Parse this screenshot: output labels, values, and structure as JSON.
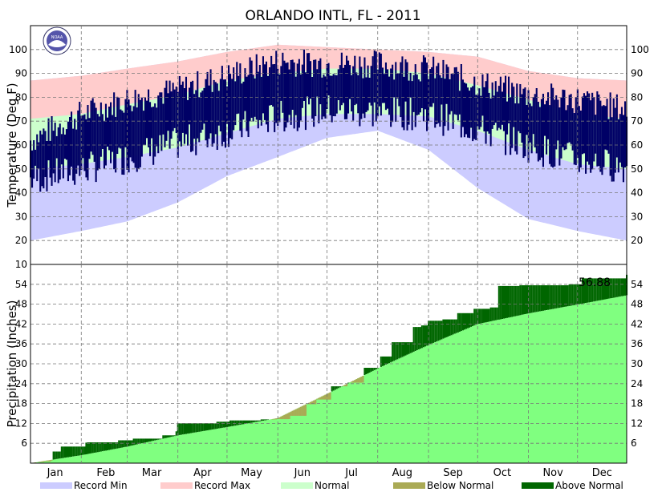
{
  "title": "ORLANDO INTL, FL - 2011",
  "colors": {
    "record_min": "#ccccff",
    "record_max": "#ffcccc",
    "normal": "#ccffcc",
    "observed_range": "#000066",
    "below_normal": "#aaaa55",
    "above_normal": "#006600",
    "normal_precip": "#80ff80",
    "logo_outer": "#ffffff",
    "logo_inner": "#5555aa"
  },
  "logo_text": "NOAA",
  "chart_data": [
    {
      "type": "area",
      "panel": "temperature",
      "ylabel": "Temperature (Deg F)",
      "ylim": [
        10,
        110
      ],
      "yticks": [
        10,
        20,
        30,
        40,
        50,
        60,
        70,
        80,
        90,
        100
      ],
      "grid": true,
      "months": [
        "Jan",
        "Feb",
        "Mar",
        "Apr",
        "May",
        "Jun",
        "Jul",
        "Aug",
        "Sep",
        "Oct",
        "Nov",
        "Dec"
      ],
      "doy_anchor": [
        1,
        32,
        60,
        91,
        121,
        152,
        182,
        213,
        244,
        274,
        305,
        335,
        365
      ],
      "normal_high": [
        71,
        73,
        77,
        81,
        87,
        90,
        92,
        92,
        90,
        85,
        79,
        73,
        71
      ],
      "normal_low": [
        50,
        52,
        55,
        59,
        65,
        71,
        73,
        73,
        72,
        66,
        58,
        52,
        50
      ],
      "record_high": [
        87,
        89,
        92,
        95,
        99,
        102,
        101,
        100,
        99,
        97,
        91,
        88,
        87
      ],
      "record_low": [
        20,
        24,
        28,
        36,
        47,
        55,
        63,
        66,
        58,
        42,
        29,
        24,
        20
      ],
      "actual_high": [
        62,
        73,
        79,
        83,
        89,
        95,
        94,
        94,
        92,
        86,
        81,
        79,
        75
      ],
      "actual_low": [
        47,
        51,
        56,
        62,
        67,
        73,
        76,
        75,
        74,
        68,
        61,
        55,
        52
      ]
    },
    {
      "type": "area",
      "panel": "precipitation",
      "ylabel": "Precipitation (Inches)",
      "ylim": [
        0,
        60
      ],
      "yticks": [
        6,
        12,
        18,
        24,
        30,
        36,
        42,
        48,
        54
      ],
      "grid": true,
      "total_label": "56.88",
      "months": [
        "Jan",
        "Feb",
        "Mar",
        "Apr",
        "May",
        "Jun",
        "Jul",
        "Aug",
        "Sep",
        "Oct",
        "Nov",
        "Dec"
      ],
      "normal_cumulative": {
        "doy": [
          1,
          32,
          60,
          91,
          121,
          152,
          182,
          213,
          244,
          274,
          305,
          335,
          365
        ],
        "values": [
          0,
          2.4,
          5.0,
          8.4,
          10.9,
          13.6,
          20.9,
          28.6,
          35.7,
          42.0,
          45.2,
          47.9,
          50.7
        ]
      },
      "observed_cumulative": {
        "doy": [
          1,
          5,
          10,
          14,
          15,
          20,
          35,
          36,
          55,
          64,
          82,
          90,
          91,
          115,
          123,
          142,
          152,
          160,
          170,
          176,
          185,
          195,
          205,
          215,
          222,
          235,
          240,
          244,
          253,
          262,
          272,
          282,
          287,
          300,
          330,
          338,
          365
        ],
        "values": [
          0,
          0.3,
          0.5,
          0.8,
          3.5,
          5.0,
          6.2,
          6.3,
          6.9,
          7.4,
          8.4,
          9.6,
          12.0,
          12.5,
          12.9,
          13.2,
          13.3,
          14.3,
          17.8,
          19.2,
          23.2,
          24.3,
          28.8,
          32.2,
          36.5,
          41.1,
          41.6,
          43.0,
          43.4,
          45.3,
          46.6,
          47.0,
          53.5,
          53.7,
          54.0,
          55.8,
          56.88
        ]
      }
    }
  ],
  "legend": [
    {
      "label": "Record Min",
      "color": "#ccccff"
    },
    {
      "label": "Record Max",
      "color": "#ffcccc"
    },
    {
      "label": "Normal",
      "color": "#ccffcc"
    },
    {
      "label": "Below Normal",
      "color": "#aaaa55"
    },
    {
      "label": "Above Normal",
      "color": "#006600"
    }
  ]
}
